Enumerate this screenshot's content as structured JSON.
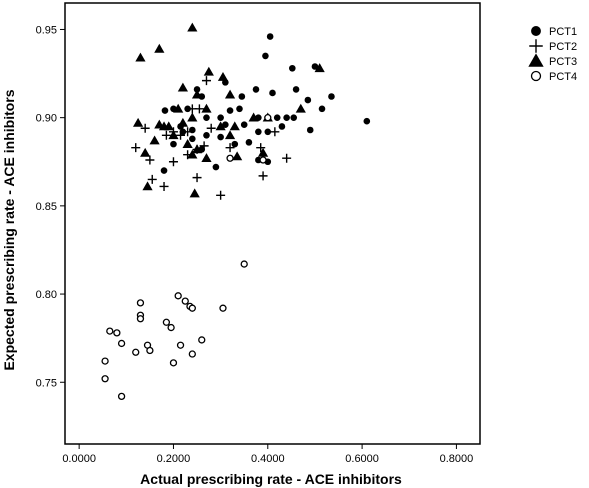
{
  "chart_data": {
    "type": "scatter",
    "xlabel": "Actual prescribing rate - ACE inhibitors",
    "ylabel": "Expected prescribing rate - ACE inhibitors",
    "xlim": [
      -0.03,
      0.85
    ],
    "ylim": [
      0.715,
      0.965
    ],
    "x_ticks": [
      0.0,
      0.2,
      0.4,
      0.6,
      0.8
    ],
    "x_tick_labels": [
      "0.0000",
      "0.2000",
      "0.4000",
      "0.6000",
      "0.8000"
    ],
    "y_ticks": [
      0.75,
      0.8,
      0.85,
      0.9,
      0.95
    ],
    "y_tick_labels": [
      "0.75",
      "0.80",
      "0.85",
      "0.90",
      "0.95"
    ],
    "grid": false,
    "legend_position": "top-right",
    "series": [
      {
        "name": "PCT1",
        "marker": "filled-circle",
        "points": [
          [
            0.405,
            0.946
          ],
          [
            0.395,
            0.935
          ],
          [
            0.452,
            0.928
          ],
          [
            0.5,
            0.929
          ],
          [
            0.535,
            0.912
          ],
          [
            0.515,
            0.905
          ],
          [
            0.485,
            0.91
          ],
          [
            0.41,
            0.914
          ],
          [
            0.375,
            0.916
          ],
          [
            0.46,
            0.916
          ],
          [
            0.345,
            0.912
          ],
          [
            0.32,
            0.904
          ],
          [
            0.26,
            0.912
          ],
          [
            0.2,
            0.905
          ],
          [
            0.182,
            0.904
          ],
          [
            0.23,
            0.905
          ],
          [
            0.27,
            0.9
          ],
          [
            0.3,
            0.9
          ],
          [
            0.34,
            0.905
          ],
          [
            0.38,
            0.9
          ],
          [
            0.42,
            0.9
          ],
          [
            0.44,
            0.9
          ],
          [
            0.455,
            0.9
          ],
          [
            0.49,
            0.893
          ],
          [
            0.43,
            0.895
          ],
          [
            0.4,
            0.892
          ],
          [
            0.38,
            0.892
          ],
          [
            0.36,
            0.886
          ],
          [
            0.33,
            0.885
          ],
          [
            0.3,
            0.889
          ],
          [
            0.27,
            0.89
          ],
          [
            0.24,
            0.893
          ],
          [
            0.215,
            0.895
          ],
          [
            0.26,
            0.882
          ],
          [
            0.29,
            0.872
          ],
          [
            0.22,
            0.892
          ],
          [
            0.2,
            0.885
          ],
          [
            0.18,
            0.87
          ],
          [
            0.38,
            0.876
          ],
          [
            0.4,
            0.875
          ],
          [
            0.61,
            0.898
          ],
          [
            0.25,
            0.916
          ],
          [
            0.31,
            0.896
          ],
          [
            0.35,
            0.896
          ],
          [
            0.24,
            0.888
          ],
          [
            0.31,
            0.92
          ]
        ]
      },
      {
        "name": "PCT2",
        "marker": "plus",
        "points": [
          [
            0.27,
            0.921
          ],
          [
            0.255,
            0.905
          ],
          [
            0.23,
            0.892
          ],
          [
            0.2,
            0.892
          ],
          [
            0.185,
            0.89
          ],
          [
            0.14,
            0.894
          ],
          [
            0.12,
            0.883
          ],
          [
            0.15,
            0.876
          ],
          [
            0.2,
            0.875
          ],
          [
            0.23,
            0.879
          ],
          [
            0.25,
            0.882
          ],
          [
            0.28,
            0.894
          ],
          [
            0.24,
            0.905
          ],
          [
            0.32,
            0.883
          ],
          [
            0.385,
            0.883
          ],
          [
            0.415,
            0.892
          ],
          [
            0.44,
            0.877
          ],
          [
            0.39,
            0.867
          ],
          [
            0.25,
            0.866
          ],
          [
            0.18,
            0.861
          ],
          [
            0.3,
            0.856
          ],
          [
            0.155,
            0.865
          ],
          [
            0.215,
            0.89
          ],
          [
            0.265,
            0.884
          ]
        ]
      },
      {
        "name": "PCT3",
        "marker": "filled-triangle",
        "points": [
          [
            0.24,
            0.951
          ],
          [
            0.17,
            0.939
          ],
          [
            0.13,
            0.934
          ],
          [
            0.275,
            0.926
          ],
          [
            0.305,
            0.923
          ],
          [
            0.51,
            0.928
          ],
          [
            0.22,
            0.917
          ],
          [
            0.25,
            0.913
          ],
          [
            0.32,
            0.913
          ],
          [
            0.21,
            0.905
          ],
          [
            0.24,
            0.9
          ],
          [
            0.17,
            0.896
          ],
          [
            0.125,
            0.897
          ],
          [
            0.19,
            0.895
          ],
          [
            0.27,
            0.905
          ],
          [
            0.3,
            0.895
          ],
          [
            0.33,
            0.895
          ],
          [
            0.37,
            0.9
          ],
          [
            0.4,
            0.9
          ],
          [
            0.47,
            0.905
          ],
          [
            0.23,
            0.885
          ],
          [
            0.25,
            0.882
          ],
          [
            0.27,
            0.877
          ],
          [
            0.24,
            0.879
          ],
          [
            0.14,
            0.88
          ],
          [
            0.16,
            0.887
          ],
          [
            0.2,
            0.89
          ],
          [
            0.32,
            0.89
          ],
          [
            0.335,
            0.878
          ],
          [
            0.39,
            0.88
          ],
          [
            0.145,
            0.861
          ],
          [
            0.245,
            0.857
          ],
          [
            0.18,
            0.895
          ],
          [
            0.22,
            0.897
          ]
        ]
      },
      {
        "name": "PCT4",
        "marker": "hollow-circle",
        "points": [
          [
            0.35,
            0.817
          ],
          [
            0.21,
            0.799
          ],
          [
            0.225,
            0.796
          ],
          [
            0.235,
            0.793
          ],
          [
            0.24,
            0.792
          ],
          [
            0.305,
            0.792
          ],
          [
            0.13,
            0.795
          ],
          [
            0.13,
            0.788
          ],
          [
            0.185,
            0.784
          ],
          [
            0.195,
            0.781
          ],
          [
            0.065,
            0.779
          ],
          [
            0.08,
            0.778
          ],
          [
            0.26,
            0.774
          ],
          [
            0.09,
            0.772
          ],
          [
            0.145,
            0.771
          ],
          [
            0.215,
            0.771
          ],
          [
            0.12,
            0.767
          ],
          [
            0.15,
            0.768
          ],
          [
            0.24,
            0.766
          ],
          [
            0.055,
            0.762
          ],
          [
            0.2,
            0.761
          ],
          [
            0.055,
            0.752
          ],
          [
            0.09,
            0.742
          ],
          [
            0.13,
            0.786
          ],
          [
            0.39,
            0.876
          ],
          [
            0.4,
            0.9
          ],
          [
            0.32,
            0.877
          ]
        ]
      }
    ]
  }
}
